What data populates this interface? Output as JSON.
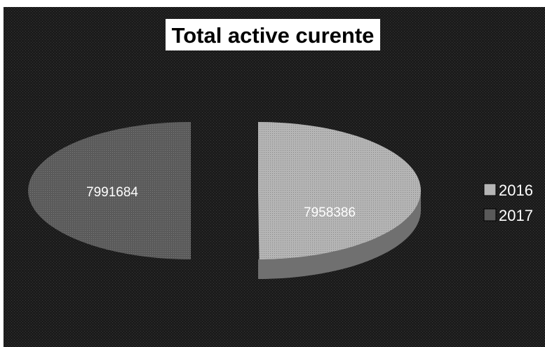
{
  "chart_data": {
    "type": "pie",
    "title": "Total active curente",
    "categories": [
      "2016",
      "2017"
    ],
    "values": [
      7958386,
      7991684
    ],
    "data_labels": [
      "7958386",
      "7991684"
    ],
    "legend": {
      "placement": "right",
      "entries": [
        "2016",
        "2017"
      ]
    },
    "exploded": true,
    "three_d": true
  },
  "colors": {
    "background": "#1b1b1b",
    "slice_2016": "#b5b5b5",
    "slice_2016_side": "#707070",
    "slice_2017": "#5a5a5a",
    "title_box": "#ffffff"
  }
}
